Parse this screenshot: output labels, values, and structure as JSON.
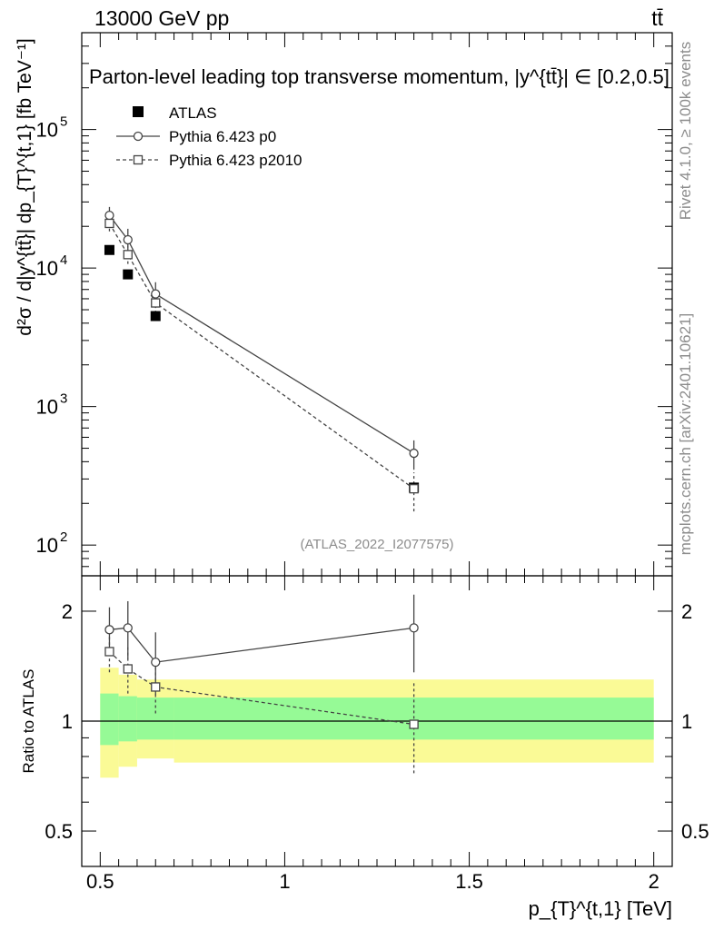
{
  "header": {
    "energy_label": "13000 GeV pp",
    "process_label": "tt̄"
  },
  "plot_title": "Parton-level leading top transverse momentum, |y^{tt̄}| ∈ [0.2,0.5]",
  "side_labels": {
    "rivet_label": "Rivet 4.1.0, ≥ 100k events",
    "source_label": "mcplots.cern.ch [arXiv:2401.10621]"
  },
  "analysis_label": "(ATLAS_2022_I2077575)",
  "chart_data": [
    {
      "type": "scatter",
      "panel": "main",
      "title": "Parton-level leading top transverse momentum, |y^{tt̄}| ∈ [0.2,0.5]",
      "ylabel": "d²σ / d|y^{tt̄}| dp_{T}^{t,1} [fb TeV⁻¹]",
      "yscale": "log",
      "xlim": [
        0.45,
        2.05
      ],
      "ylim": [
        60,
        500000
      ],
      "y_ticks": [
        {
          "value": 100,
          "base": "10",
          "exp": "2"
        },
        {
          "value": 1000,
          "base": "10",
          "exp": "3"
        },
        {
          "value": 10000,
          "base": "10",
          "exp": "4"
        },
        {
          "value": 100000,
          "base": "10",
          "exp": "5"
        }
      ],
      "legend": {
        "position": "top-left",
        "entries": [
          "ATLAS",
          "Pythia 6.423 p0",
          "Pythia 6.423 p2010"
        ]
      },
      "series": [
        {
          "name": "ATLAS",
          "marker": "filled-square",
          "x": [
            0.525,
            0.575,
            0.65,
            1.35
          ],
          "y": [
            13500,
            9000,
            4500,
            260
          ]
        },
        {
          "name": "Pythia 6.423 p0",
          "marker": "open-circle",
          "line": "solid",
          "x": [
            0.525,
            0.575,
            0.65,
            1.35
          ],
          "y": [
            24000,
            16000,
            6500,
            460
          ],
          "err_lo": [
            21000,
            13200,
            5300,
            350
          ],
          "err_hi": [
            27600,
            19200,
            7900,
            570
          ]
        },
        {
          "name": "Pythia 6.423 p2010",
          "marker": "open-square",
          "line": "dashed",
          "x": [
            0.525,
            0.575,
            0.65,
            1.35
          ],
          "y": [
            21000,
            12500,
            5600,
            255
          ],
          "err_lo": [
            18400,
            10700,
            4700,
            175
          ],
          "err_hi": [
            24000,
            14500,
            6500,
            335
          ]
        }
      ]
    },
    {
      "type": "scatter",
      "panel": "ratio",
      "ylabel": "Ratio to ATLAS",
      "xlabel": "p_{T}^{t,1} [TeV]",
      "yscale": "log",
      "xlim": [
        0.45,
        2.05
      ],
      "ylim": [
        0.4,
        2.5
      ],
      "x_ticks": [
        {
          "value": 0.5,
          "label": "0.5"
        },
        {
          "value": 1,
          "label": "1"
        },
        {
          "value": 1.5,
          "label": "1.5"
        },
        {
          "value": 2,
          "label": "2"
        }
      ],
      "y_ticks": [
        {
          "value": 0.5,
          "label": "0.5"
        },
        {
          "value": 1,
          "label": "1"
        },
        {
          "value": 2,
          "label": "2"
        }
      ],
      "uncertainty_bands": {
        "bins": [
          [
            0.5,
            0.55
          ],
          [
            0.55,
            0.6
          ],
          [
            0.6,
            0.7
          ],
          [
            0.7,
            2.0
          ]
        ],
        "stat_lo": [
          0.86,
          0.88,
          0.89,
          0.89
        ],
        "stat_hi": [
          1.19,
          1.17,
          1.16,
          1.16
        ],
        "total_lo": [
          0.7,
          0.75,
          0.79,
          0.77
        ],
        "total_hi": [
          1.4,
          1.34,
          1.3,
          1.3
        ]
      },
      "series": [
        {
          "name": "Pythia 6.423 p0",
          "marker": "open-circle",
          "line": "solid",
          "x": [
            0.525,
            0.575,
            0.65,
            1.35
          ],
          "y": [
            1.78,
            1.8,
            1.45,
            1.8
          ],
          "err_lo": [
            1.56,
            1.48,
            1.18,
            1.36
          ],
          "err_hi": [
            2.05,
            2.13,
            1.75,
            2.22
          ]
        },
        {
          "name": "Pythia 6.423 p2010",
          "marker": "open-square",
          "line": "dashed",
          "x": [
            0.525,
            0.575,
            0.65,
            1.35
          ],
          "y": [
            1.55,
            1.39,
            1.24,
            0.98
          ],
          "err_lo": [
            1.36,
            1.19,
            1.05,
            0.72
          ],
          "err_hi": [
            1.78,
            1.61,
            1.44,
            1.28
          ]
        }
      ]
    }
  ]
}
